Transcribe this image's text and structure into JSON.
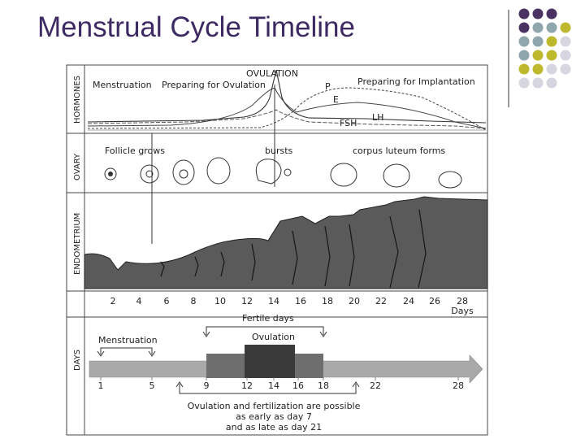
{
  "title": "Menstrual Cycle Timeline",
  "palette": {
    "purple": "#4a3263",
    "teal": "#8fa6ad",
    "olive": "#bdb82c",
    "lavender": "#d6d6e0",
    "title_color": "#3e2a63"
  },
  "rows": {
    "hormones": "HORMONES",
    "ovary": "OVARY",
    "endometrium": "ENDOMETRIUM",
    "days": "DAYS"
  },
  "hormones": {
    "menstruation": "Menstruation",
    "preparing_ovulation": "Preparing for Ovulation",
    "ovulation": "OVULATION",
    "preparing_implantation": "Preparing for Implantation",
    "p": "P",
    "e": "E",
    "lh": "LH",
    "fsh": "FSH"
  },
  "ovary": {
    "follicle_grows": "Follicle grows",
    "bursts": "bursts",
    "corpus_luteum": "corpus luteum forms"
  },
  "endometrium_days": [
    "2",
    "4",
    "6",
    "8",
    "10",
    "12",
    "14",
    "16",
    "18",
    "20",
    "22",
    "24",
    "26",
    "28"
  ],
  "days_unit": "Days",
  "fertile_days": "Fertile days",
  "timeline": {
    "menstruation": "Menstruation",
    "ovulation": "Ovulation",
    "labels": [
      "1",
      "5",
      "9",
      "12",
      "14",
      "16",
      "18",
      "22",
      "28"
    ],
    "note_line1": "Ovulation and fertilization are possible",
    "note_line2": "as early as day 7",
    "note_line3": "and as late as day 21"
  }
}
